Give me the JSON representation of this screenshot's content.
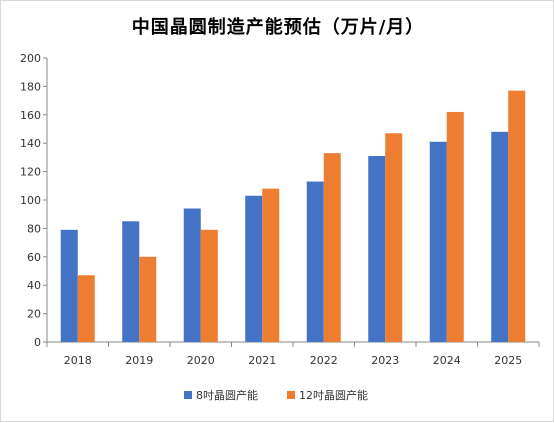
{
  "chart_data": {
    "type": "bar",
    "title": "中国晶圆制造产能预估（万片/月）",
    "xlabel": "",
    "ylabel": "",
    "categories": [
      "2018",
      "2019",
      "2020",
      "2021",
      "2022",
      "2023",
      "2024",
      "2025"
    ],
    "series": [
      {
        "name": "8吋晶圆产能",
        "color": "#4472C4",
        "values": [
          79,
          85,
          94,
          103,
          113,
          131,
          141,
          148
        ]
      },
      {
        "name": "12吋晶圆产能",
        "color": "#ED7D31",
        "values": [
          47,
          60,
          79,
          108,
          133,
          147,
          162,
          177
        ]
      }
    ],
    "ylim": [
      0,
      200
    ],
    "yticks": [
      0,
      20,
      40,
      60,
      80,
      100,
      120,
      140,
      160,
      180,
      200
    ],
    "grid": false,
    "legend_position": "bottom"
  }
}
